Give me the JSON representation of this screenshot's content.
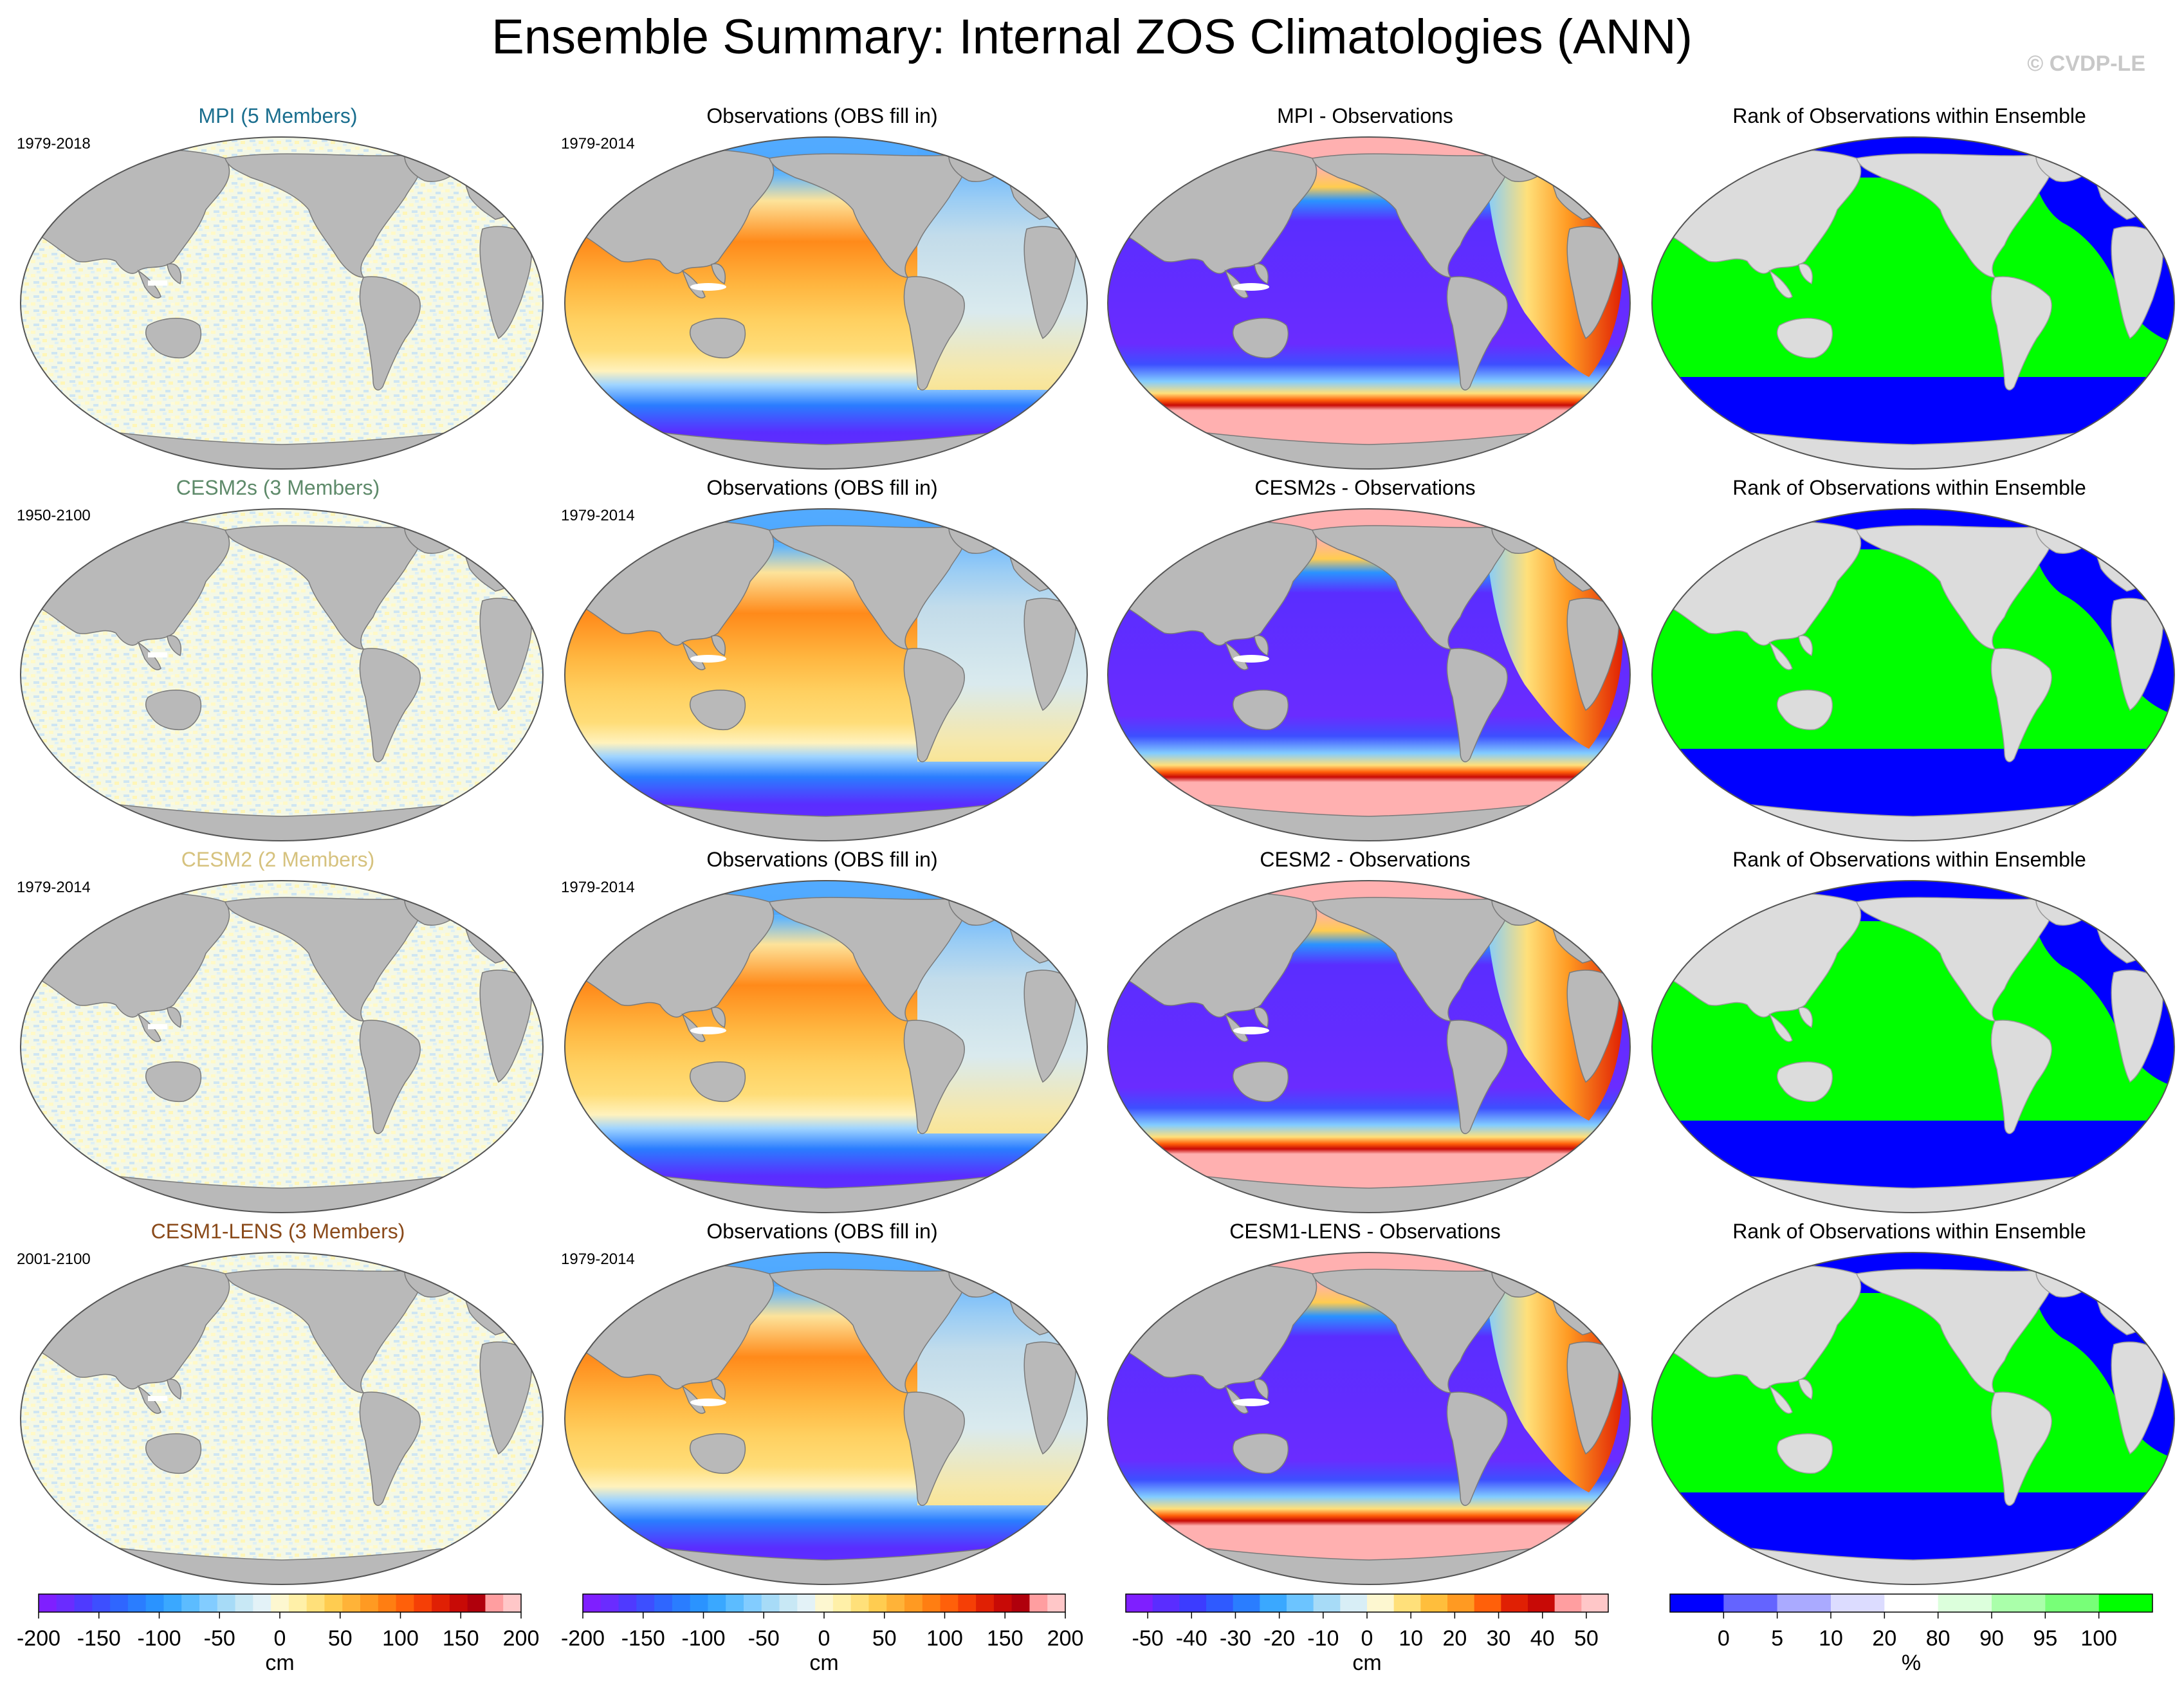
{
  "title": "Ensemble Summary: Internal ZOS Climatologies (ANN)",
  "watermark": "© CVDP-LE",
  "rows": [
    {
      "ensemble": {
        "title": "MPI (5 Members)",
        "title_color": "#1a6e8e",
        "years": "1979-2018"
      },
      "obs": {
        "title": "Observations (OBS fill in)",
        "years": "1979-2014"
      },
      "diff": {
        "title": "MPI - Observations"
      },
      "rank": {
        "title": "Rank of Observations within Ensemble"
      }
    },
    {
      "ensemble": {
        "title": "CESM2s (3 Members)",
        "title_color": "#5e8a6a",
        "years": "1950-2100"
      },
      "obs": {
        "title": "Observations (OBS fill in)",
        "years": "1979-2014"
      },
      "diff": {
        "title": "CESM2s - Observations"
      },
      "rank": {
        "title": "Rank of Observations within Ensemble"
      }
    },
    {
      "ensemble": {
        "title": "CESM2 (2 Members)",
        "title_color": "#d6c27e",
        "years": "1979-2014"
      },
      "obs": {
        "title": "Observations (OBS fill in)",
        "years": "1979-2014"
      },
      "diff": {
        "title": "CESM2 - Observations"
      },
      "rank": {
        "title": "Rank of Observations within Ensemble"
      }
    },
    {
      "ensemble": {
        "title": "CESM1-LENS (3 Members)",
        "title_color": "#8a4a1a",
        "years": "2001-2100"
      },
      "obs": {
        "title": "Observations (OBS fill in)",
        "years": "1979-2014"
      },
      "diff": {
        "title": "CESM1-LENS - Observations"
      },
      "rank": {
        "title": "Rank of Observations within Ensemble"
      }
    }
  ],
  "colorbars": [
    {
      "unit": "cm",
      "ticks": [
        "-200",
        "-150",
        "-100",
        "-50",
        "0",
        "50",
        "100",
        "150",
        "200"
      ],
      "tick_values": [
        -200,
        -150,
        -100,
        -50,
        0,
        50,
        100,
        150,
        200
      ],
      "range": [
        -200,
        200
      ],
      "colors": [
        "#7f1fff",
        "#6a2cff",
        "#4f3aff",
        "#3d4fff",
        "#2f66ff",
        "#2a7dff",
        "#2a93ff",
        "#3aa8ff",
        "#5cbcff",
        "#82ccff",
        "#a7dbf7",
        "#c8e8f5",
        "#e3f2f7",
        "#fdf7d0",
        "#fff0a8",
        "#ffe07a",
        "#ffcc50",
        "#ffb338",
        "#ff9a22",
        "#ff7e12",
        "#ff600a",
        "#f53f06",
        "#e02004",
        "#c80a06",
        "#b0000c",
        "#ff9ea0",
        "#ffc7c8"
      ]
    },
    {
      "unit": "cm",
      "ticks": [
        "-200",
        "-150",
        "-100",
        "-50",
        "0",
        "50",
        "100",
        "150",
        "200"
      ],
      "tick_values": [
        -200,
        -150,
        -100,
        -50,
        0,
        50,
        100,
        150,
        200
      ],
      "range": [
        -200,
        200
      ],
      "colors": [
        "#7f1fff",
        "#6a2cff",
        "#4f3aff",
        "#3d4fff",
        "#2f66ff",
        "#2a7dff",
        "#2a93ff",
        "#3aa8ff",
        "#5cbcff",
        "#82ccff",
        "#a7dbf7",
        "#c8e8f5",
        "#e3f2f7",
        "#fdf7d0",
        "#fff0a8",
        "#ffe07a",
        "#ffcc50",
        "#ffb338",
        "#ff9a22",
        "#ff7e12",
        "#ff600a",
        "#f53f06",
        "#e02004",
        "#c80a06",
        "#b0000c",
        "#ff9ea0",
        "#ffc7c8"
      ]
    },
    {
      "unit": "cm",
      "ticks": [
        "-50",
        "-40",
        "-30",
        "-20",
        "-10",
        "0",
        "10",
        "20",
        "30",
        "40",
        "50"
      ],
      "tick_values": [
        -50,
        -40,
        -30,
        -20,
        -10,
        0,
        10,
        20,
        30,
        40,
        50
      ],
      "range": [
        -55,
        55
      ],
      "colors": [
        "#7f1fff",
        "#5a2dff",
        "#3c3cff",
        "#2f5aff",
        "#2a7dff",
        "#3aa8ff",
        "#6cc4ff",
        "#a7dbf7",
        "#d8eef6",
        "#fdf7d0",
        "#ffe07a",
        "#ffbe3c",
        "#ff9a22",
        "#ff600a",
        "#e02004",
        "#c80a06",
        "#ff9ea0",
        "#ffc7c8"
      ]
    },
    {
      "unit": "%",
      "ticks": [
        "0",
        "5",
        "10",
        "20",
        "80",
        "90",
        "95",
        "100"
      ],
      "tick_values": [
        0,
        5,
        10,
        20,
        80,
        90,
        95,
        100
      ],
      "colors": [
        "#0000ff",
        "#6464ff",
        "#aaaaff",
        "#dcdcff",
        "#ffffff",
        "#dcffdc",
        "#aaffaa",
        "#78ff78",
        "#00ff00"
      ]
    }
  ]
}
